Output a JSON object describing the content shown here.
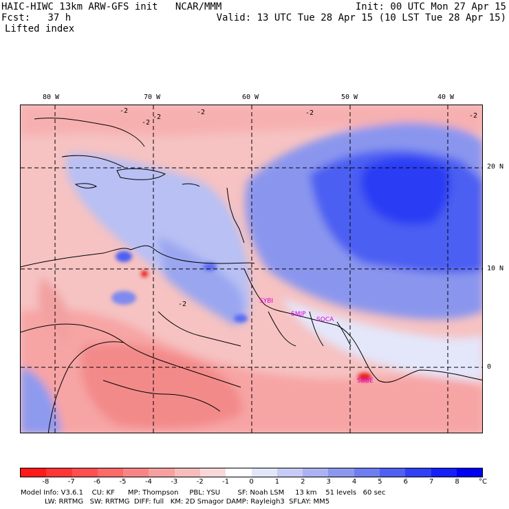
{
  "header": {
    "left_line1": "HAIC-HIWC 13km ARW-GFS init   NCAR/MMM",
    "left_line2": "Fcst:   37 h",
    "field_name": "Lifted index",
    "right_line1": "Init: 00 UTC Mon 27 Apr 15",
    "right_line2": "Valid: 13 UTC Tue 28 Apr 15 (10 LST Tue 28 Apr 15)"
  },
  "longitude_labels": [
    "80 W",
    "70 W",
    "60 W",
    "50 W",
    "40 W"
  ],
  "latitude_labels": [
    "20 N",
    "10 N",
    "0"
  ],
  "stations": [
    "SYBI",
    "SMJP",
    "SOCA",
    "SBBE"
  ],
  "colorbar": {
    "ticks": [
      "-8",
      "-7",
      "-6",
      "-5",
      "-4",
      "-3",
      "-2",
      "-1",
      "0",
      "1",
      "2",
      "3",
      "4",
      "5",
      "6",
      "7",
      "8"
    ],
    "unit": "°C",
    "colors": [
      "#ff1a1a",
      "#ff3636",
      "#ff5050",
      "#fc6a6a",
      "#f88585",
      "#f6a0a0",
      "#f8bcbc",
      "#fbd8d8",
      "#ffffff",
      "#e2e6fa",
      "#c6ccf6",
      "#aab2f2",
      "#8c98ee",
      "#6e7ef0",
      "#4f60f2",
      "#3040f4",
      "#1420f6",
      "#0000f0"
    ]
  },
  "contour_labels": [
    "-2",
    "-2",
    "-2",
    "-2",
    "-2",
    "-2",
    "-2"
  ],
  "footer": {
    "line1": "Model Info: V3.6.1    CU: KF      MP: Thompson     PBL: YSU        SF: Noah LSM     13 km    51 levels   60 sec",
    "line2": "           LW: RRTMG   SW: RRTMG  DIFF: full   KM: 2D Smagor DAMP: Rayleigh3  SFLAY: MM5"
  }
}
